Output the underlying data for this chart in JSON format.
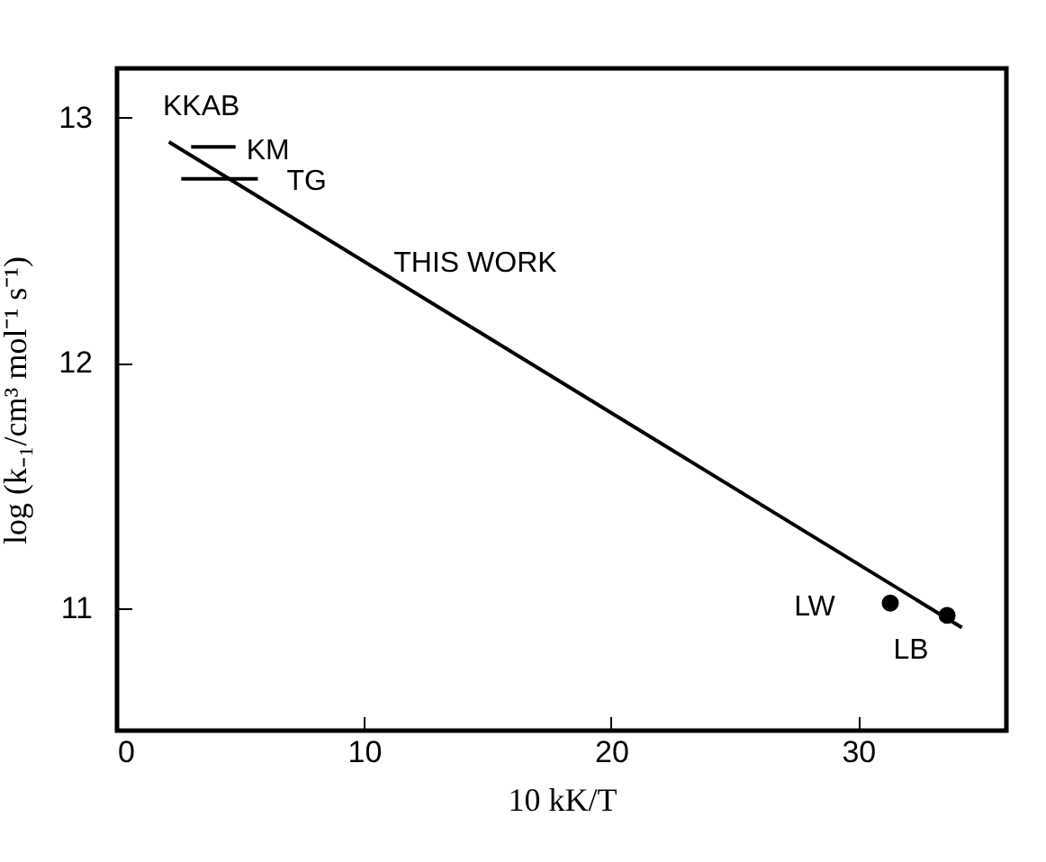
{
  "chart_data": {
    "type": "line",
    "xlabel": "10 kK/T",
    "ylabel": "log (k₋₁/cm³ mol⁻¹ s⁻¹)",
    "xlim": [
      0,
      36
    ],
    "xticks": [
      0,
      10,
      20,
      30
    ],
    "ylim": [
      10.5,
      13.2
    ],
    "yticks": [
      11,
      12,
      13
    ],
    "grid": false,
    "series": [
      {
        "color": "#000000",
        "x": [
          2.1,
          14.5,
          34.2
        ],
        "values": [
          12.9,
          12.135,
          10.92
        ]
      },
      {
        "color": "#000000",
        "x": [
          3.0,
          4.8
        ],
        "values": [
          12.88,
          12.88
        ]
      },
      {
        "color": "#000000",
        "x": [
          2.6,
          5.7
        ],
        "values": [
          12.75,
          12.75
        ]
      },
      {
        "type": "scatter",
        "color": "#000000",
        "marker": "circle",
        "x": [
          31.3,
          33.6
        ],
        "values": [
          11.02,
          10.97
        ]
      }
    ],
    "annotations": [
      {
        "text": "KKAB",
        "x": 2.1,
        "y": 12.9
      },
      {
        "text": "KM",
        "x": 4.8,
        "y": 12.88
      },
      {
        "text": "TG",
        "x": 5.7,
        "y": 12.75
      },
      {
        "text": "THIS WORK",
        "x": 14.5,
        "y": 12.135
      },
      {
        "text": "LW",
        "x": 31.3,
        "y": 11.02
      },
      {
        "text": "LB",
        "x": 33.6,
        "y": 10.97
      }
    ]
  }
}
